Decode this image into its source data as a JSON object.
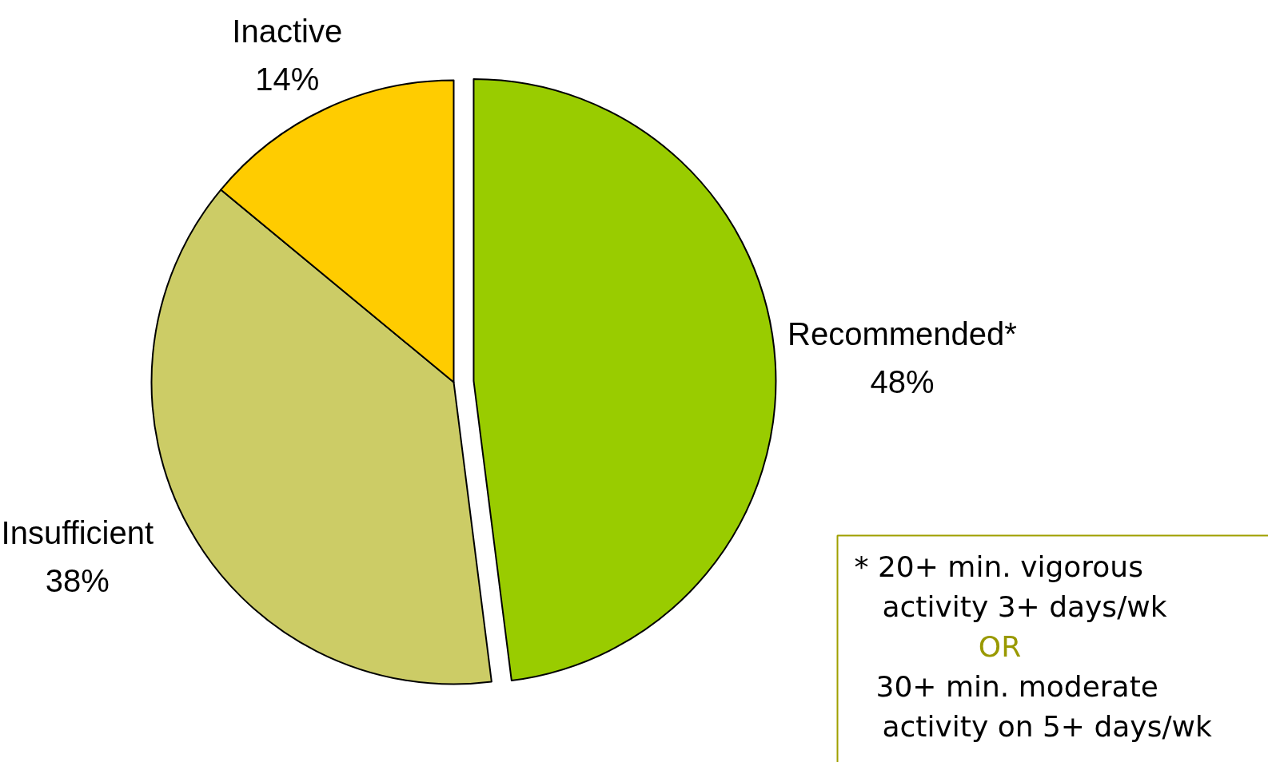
{
  "chart_data": {
    "type": "pie",
    "categories": [
      "Recommended*",
      "Insufficient",
      "Inactive"
    ],
    "values": [
      48,
      38,
      14
    ],
    "colors": [
      "#99cc00",
      "#cccc66",
      "#ffcc00"
    ],
    "value_labels": [
      "48%",
      "38%",
      "14%"
    ],
    "annotations": [
      "* 20+ min. vigorous\nactivity 3+ days/wk",
      "OR",
      "30+ min. moderate\nactivity on 5+ days/wk"
    ]
  }
}
